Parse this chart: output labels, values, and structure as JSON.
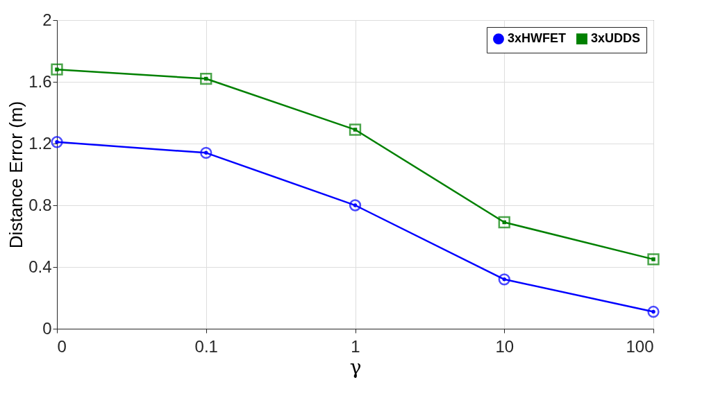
{
  "chart_data": {
    "type": "line",
    "xlabel": "γ",
    "ylabel": "Distance Error (m)",
    "categories": [
      "0",
      "0.1",
      "1",
      "10",
      "100"
    ],
    "series": [
      {
        "name": "3xHWFET",
        "color": "#0000ff",
        "marker": "circle",
        "values": [
          1.21,
          1.14,
          0.8,
          0.32,
          0.11
        ]
      },
      {
        "name": "3xUDDS",
        "color": "#008000",
        "marker": "square",
        "values": [
          1.68,
          1.62,
          1.29,
          0.69,
          0.45
        ]
      }
    ],
    "ylim": [
      0,
      2
    ],
    "yticks": [
      0,
      0.4,
      0.8,
      1.2,
      1.6,
      2
    ],
    "grid": true,
    "legend": "top right",
    "line_style": "solid"
  }
}
